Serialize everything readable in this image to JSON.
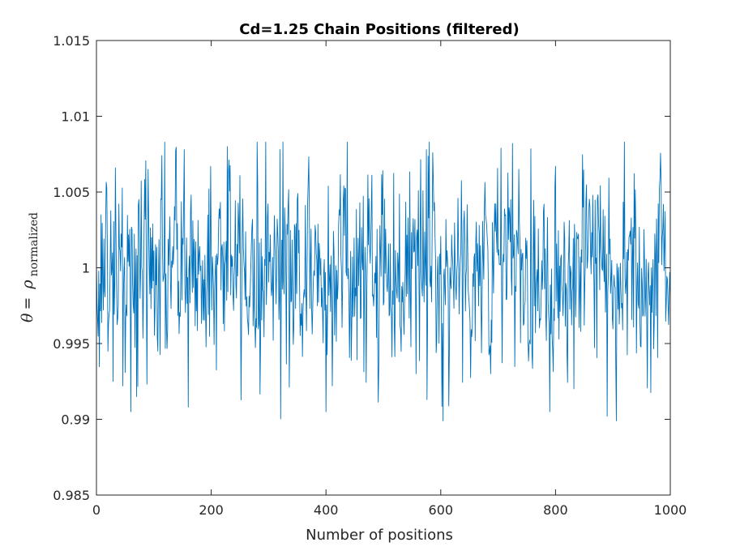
{
  "chart_data": {
    "type": "line",
    "title": "Cd=1.25  Chain  Positions (filtered)",
    "xlabel": "Number  of positions",
    "ylabel": {
      "theta": "θ",
      "equals": "=",
      "rho": "ρ",
      "subscript": "normalized"
    },
    "xlim": [
      0,
      1000
    ],
    "ylim": [
      0.985,
      1.015
    ],
    "xticks": [
      0,
      200,
      400,
      600,
      800,
      1000
    ],
    "xtick_labels": [
      "0",
      "200",
      "400",
      "600",
      "800",
      "1000"
    ],
    "yticks": [
      0.985,
      0.99,
      0.995,
      1.0,
      1.005,
      1.01,
      1.015
    ],
    "ytick_labels": [
      "0.985",
      "0.99",
      "0.995",
      "1",
      "1.005",
      "1.01",
      "1.015"
    ],
    "grid": false,
    "series": [
      {
        "color": "#0072BD",
        "n_points": 1000,
        "y_center": 1.0,
        "y_min": 0.9899,
        "y_max": 1.0083,
        "y_std": 0.0035,
        "anchor_x": [
          0,
          8,
          14,
          29,
          33,
          46,
          60,
          70,
          153,
          160,
          228,
          320,
          325,
          400,
          575,
          580,
          604,
          705,
          790,
          800,
          890,
          920,
          1000
        ],
        "anchor_y": [
          1.0002,
          1.0035,
          0.9985,
          0.9925,
          1.0066,
          0.9922,
          0.9905,
          0.9915,
          1.0078,
          0.9908,
          1.008,
          1.0078,
          1.0083,
          0.9905,
          1.0078,
          1.0083,
          0.9899,
          1.0079,
          0.9905,
          1.0067,
          0.9902,
          1.0083,
          0.998
        ]
      }
    ]
  }
}
